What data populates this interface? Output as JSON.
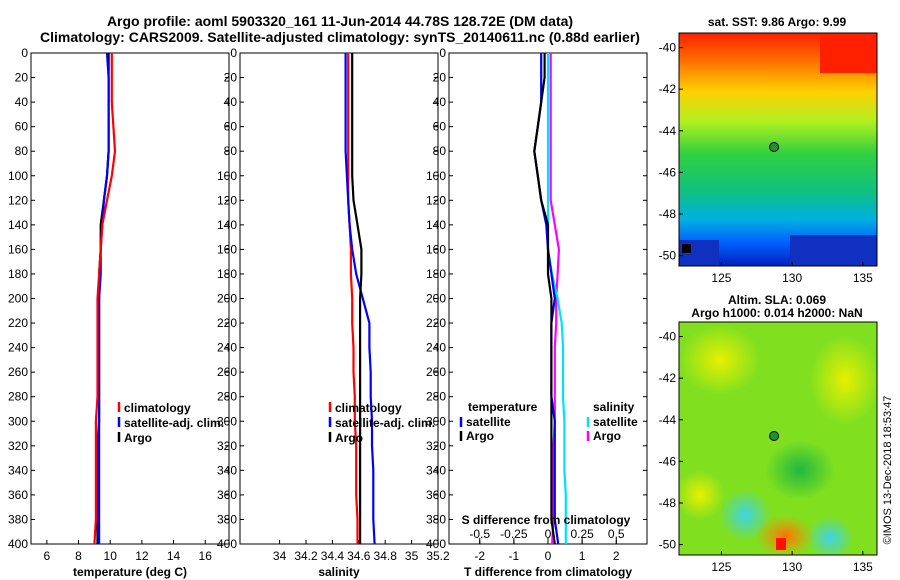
{
  "title": {
    "line1": "Argo profile: aoml 5903320_161 11-Jun-2014 44.78S 128.72E (DM data)",
    "line2": "Climatology: CARS2009. Satellite-adjusted climatology: synTS_20140611.nc (0.88d earlier)"
  },
  "credit": "©IMOS 13-Dec-2018 18:53:47",
  "colors": {
    "climatology": "#ff0000",
    "satellite": "#0000ff",
    "argo": "#000000",
    "sal_sat": "#00e0ff",
    "sal_argo": "#ff00ff"
  },
  "legend": {
    "climatology": "climatology",
    "satellite_adj": "satellite-adj. clim.",
    "argo": "Argo",
    "temperature_head": "temperature",
    "salinity_head": "salinity",
    "satellite": "satellite",
    "s_diff_label": "S difference from climatology"
  },
  "maps": {
    "sst": {
      "title": "sat. SST: 9.86 Argo: 9.99",
      "yticks": [
        -40,
        -42,
        -44,
        -46,
        -48,
        -50
      ],
      "xticks": [
        125,
        130,
        135
      ],
      "xlim": [
        122,
        136
      ],
      "ylim": [
        -50.5,
        -39.3
      ],
      "marker": [
        128.72,
        -44.78
      ]
    },
    "sla": {
      "title1": "Altim. SLA: 0.069",
      "title2": "Argo h1000: 0.014 h2000: NaN",
      "yticks": [
        -40,
        -42,
        -44,
        -46,
        -48,
        -50
      ],
      "xticks": [
        125,
        130,
        135
      ],
      "xlim": [
        122,
        136
      ],
      "ylim": [
        -50.5,
        -39.3
      ],
      "marker": [
        128.72,
        -44.78
      ]
    }
  },
  "chart_data": [
    {
      "type": "line",
      "title": "",
      "xlabel": "temperature (deg C)",
      "ylabel": "",
      "xlim": [
        5,
        17.5
      ],
      "ylim": [
        400,
        0
      ],
      "xticks": [
        6,
        8,
        10,
        12,
        14,
        16
      ],
      "yticks": [
        0,
        20,
        40,
        60,
        80,
        100,
        120,
        140,
        160,
        180,
        200,
        220,
        240,
        260,
        280,
        300,
        320,
        340,
        360,
        380,
        400
      ],
      "depth": [
        0,
        20,
        40,
        60,
        80,
        100,
        120,
        140,
        160,
        180,
        200,
        220,
        240,
        260,
        280,
        300,
        320,
        340,
        360,
        380,
        400
      ],
      "series": [
        {
          "name": "climatology",
          "values": [
            10.1,
            10.1,
            10.1,
            10.2,
            10.3,
            10.1,
            9.8,
            9.5,
            9.4,
            9.3,
            9.2,
            9.2,
            9.2,
            9.2,
            9.2,
            9.1,
            9.1,
            9.1,
            9.1,
            9.1,
            9.0
          ]
        },
        {
          "name": "satellite-adj. clim.",
          "values": [
            9.8,
            9.9,
            9.9,
            9.9,
            9.9,
            9.8,
            9.6,
            9.5,
            9.4,
            9.4,
            9.3,
            9.3,
            9.3,
            9.3,
            9.3,
            9.3,
            9.3,
            9.3,
            9.3,
            9.3,
            9.3
          ]
        },
        {
          "name": "Argo",
          "values": [
            9.9,
            9.9,
            9.9,
            9.9,
            9.9,
            9.8,
            9.6,
            9.4,
            9.4,
            9.3,
            9.3,
            9.3,
            9.3,
            9.3,
            9.3,
            9.3,
            9.2,
            9.2,
            9.2,
            9.2,
            9.2
          ]
        }
      ]
    },
    {
      "type": "line",
      "title": "",
      "xlabel": "salinity",
      "ylabel": "",
      "xlim": [
        33.7,
        35.2
      ],
      "ylim": [
        400,
        0
      ],
      "xticks": [
        34,
        34.2,
        34.4,
        34.6,
        34.8,
        35,
        35.2
      ],
      "yticks": [
        0,
        20,
        40,
        60,
        80,
        100,
        120,
        140,
        160,
        180,
        200,
        220,
        240,
        260,
        280,
        300,
        320,
        340,
        360,
        380,
        400
      ],
      "depth": [
        0,
        20,
        40,
        60,
        80,
        100,
        120,
        140,
        160,
        180,
        200,
        220,
        240,
        260,
        280,
        300,
        320,
        340,
        360,
        380,
        400
      ],
      "series": [
        {
          "name": "climatology",
          "values": [
            34.52,
            34.52,
            34.52,
            34.52,
            34.52,
            34.52,
            34.52,
            34.53,
            34.54,
            34.54,
            34.55,
            34.55,
            34.56,
            34.56,
            34.57,
            34.57,
            34.58,
            34.58,
            34.58,
            34.59,
            34.59
          ]
        },
        {
          "name": "satellite-adj. clim.",
          "values": [
            34.5,
            34.5,
            34.5,
            34.5,
            34.5,
            34.51,
            34.52,
            34.53,
            34.55,
            34.58,
            34.63,
            34.68,
            34.68,
            34.69,
            34.69,
            34.7,
            34.7,
            34.71,
            34.71,
            34.71,
            34.72
          ]
        },
        {
          "name": "Argo",
          "values": [
            34.55,
            34.55,
            34.55,
            34.55,
            34.55,
            34.55,
            34.56,
            34.59,
            34.62,
            34.62,
            34.61,
            34.61,
            34.61,
            34.61,
            34.61,
            34.61,
            34.61,
            34.61,
            34.61,
            34.61,
            34.61
          ]
        }
      ]
    },
    {
      "type": "line",
      "title": "",
      "xlabel": "T difference from climatology",
      "ylabel": "",
      "xlim": [
        -2.9,
        2.9
      ],
      "ylim": [
        400,
        0
      ],
      "xticks": [
        -2,
        -1,
        0,
        1,
        2
      ],
      "xtick_labels": [
        "-2",
        "-1",
        "0",
        "1",
        "2"
      ],
      "s_xticks": [
        -0.5,
        -0.25,
        0,
        0.25,
        0.5
      ],
      "s_xtick_labels": [
        "-0.5",
        "-0.25",
        "0",
        "0.25",
        "0.5"
      ],
      "s_xlim": [
        -0.725,
        0.725
      ],
      "yticks": [
        0,
        20,
        40,
        60,
        80,
        100,
        120,
        140,
        160,
        180,
        200,
        220,
        240,
        260,
        280,
        300,
        320,
        340,
        360,
        380,
        400
      ],
      "depth": [
        0,
        20,
        40,
        60,
        80,
        100,
        120,
        140,
        160,
        180,
        200,
        220,
        240,
        260,
        280,
        300,
        320,
        340,
        360,
        380,
        400
      ],
      "series": [
        {
          "name": "T satellite",
          "values": [
            -0.2,
            -0.2,
            -0.2,
            -0.3,
            -0.4,
            -0.3,
            -0.2,
            -0.05,
            0.0,
            0.1,
            0.2,
            0.1,
            0.1,
            0.1,
            0.1,
            0.2,
            0.2,
            0.2,
            0.2,
            0.2,
            0.3
          ]
        },
        {
          "name": "T Argo",
          "values": [
            -0.1,
            -0.1,
            -0.2,
            -0.3,
            -0.4,
            -0.3,
            -0.2,
            0.0,
            0.0,
            0.0,
            0.1,
            0.1,
            0.1,
            0.1,
            0.1,
            0.1,
            0.1,
            0.1,
            0.1,
            0.1,
            0.2
          ]
        },
        {
          "name": "S satellite",
          "values": [
            0.0,
            0.0,
            0.0,
            0.0,
            0.0,
            0.0,
            0.0,
            0.0,
            0.0,
            0.03,
            0.07,
            0.1,
            0.11,
            0.11,
            0.11,
            0.12,
            0.12,
            0.12,
            0.13,
            0.13,
            0.13
          ]
        },
        {
          "name": "S Argo",
          "values": [
            0.02,
            0.02,
            0.02,
            0.02,
            0.02,
            0.02,
            0.02,
            0.05,
            0.08,
            0.07,
            0.06,
            0.06,
            0.05,
            0.05,
            0.05,
            0.05,
            0.04,
            0.04,
            0.04,
            0.04,
            0.03
          ]
        }
      ]
    }
  ]
}
